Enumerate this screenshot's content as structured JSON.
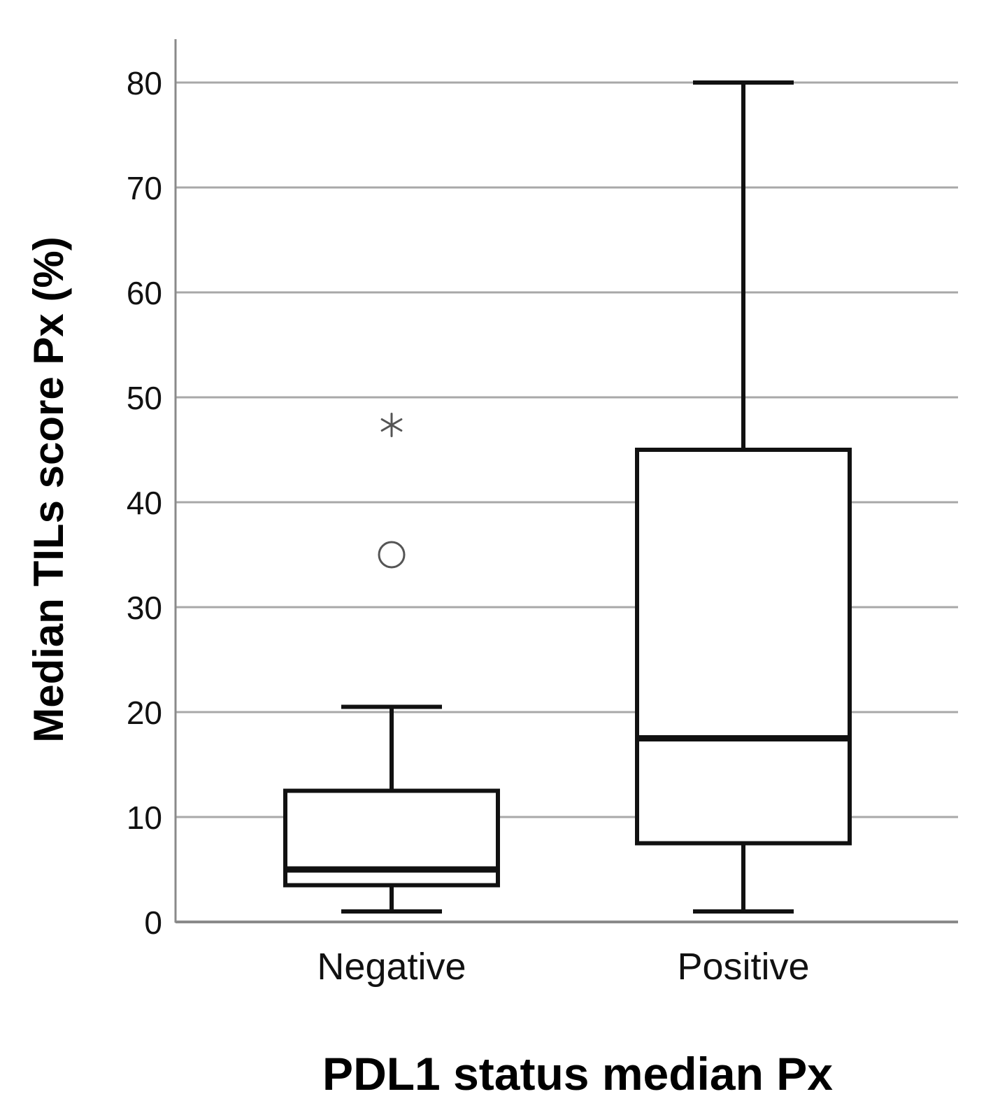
{
  "chart_data": {
    "type": "box",
    "title": "",
    "xlabel": "PDL1 status median Px",
    "ylabel": "Median TILs score Px (%)",
    "ylim": [
      0,
      84
    ],
    "yticks": [
      0,
      10,
      20,
      30,
      40,
      50,
      60,
      70,
      80
    ],
    "ytick_labels": [
      "0",
      "10",
      "20",
      "30",
      "40",
      "50",
      "60",
      "70",
      "80"
    ],
    "grid": true,
    "categories": [
      "Negative",
      "Positive"
    ],
    "boxes": [
      {
        "category": "Negative",
        "whisker_low": 1,
        "q1": 3.5,
        "median": 5,
        "q3": 12.5,
        "whisker_high": 20.5,
        "outliers": [
          35
        ],
        "extremes": [
          47.5
        ]
      },
      {
        "category": "Positive",
        "whisker_low": 1,
        "q1": 7.5,
        "median": 17.5,
        "q3": 45,
        "whisker_high": 80,
        "outliers": [],
        "extremes": []
      }
    ],
    "colors": {
      "gridline": "#a8a8a8",
      "axis": "#8a8a8a",
      "box_stroke": "#111111",
      "box_fill": "#ffffff",
      "outlier": "#555555"
    }
  }
}
